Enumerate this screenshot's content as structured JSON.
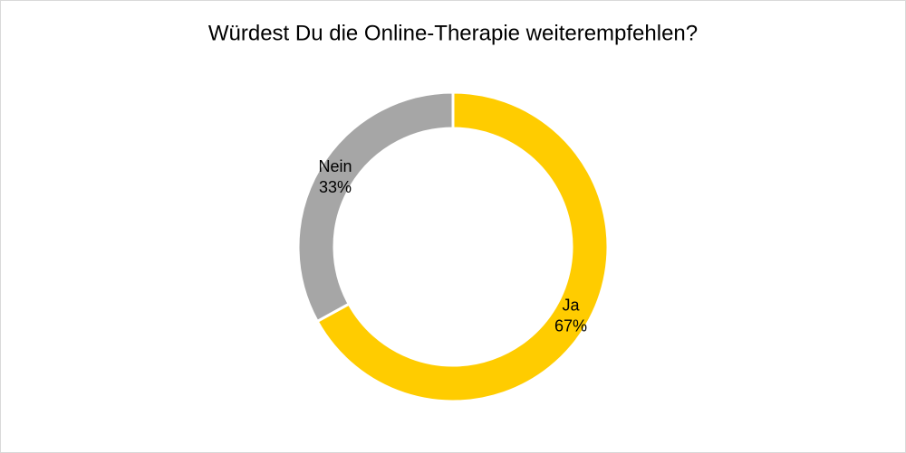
{
  "chart_data": {
    "type": "donut",
    "title": "Würdest Du die Online-Therapie weiterempfehlen?",
    "categories": [
      "Ja",
      "Nein"
    ],
    "values": [
      67,
      33
    ],
    "value_labels": [
      "67%",
      "33%"
    ],
    "colors": [
      "#ffcc00",
      "#a6a6a6"
    ]
  }
}
